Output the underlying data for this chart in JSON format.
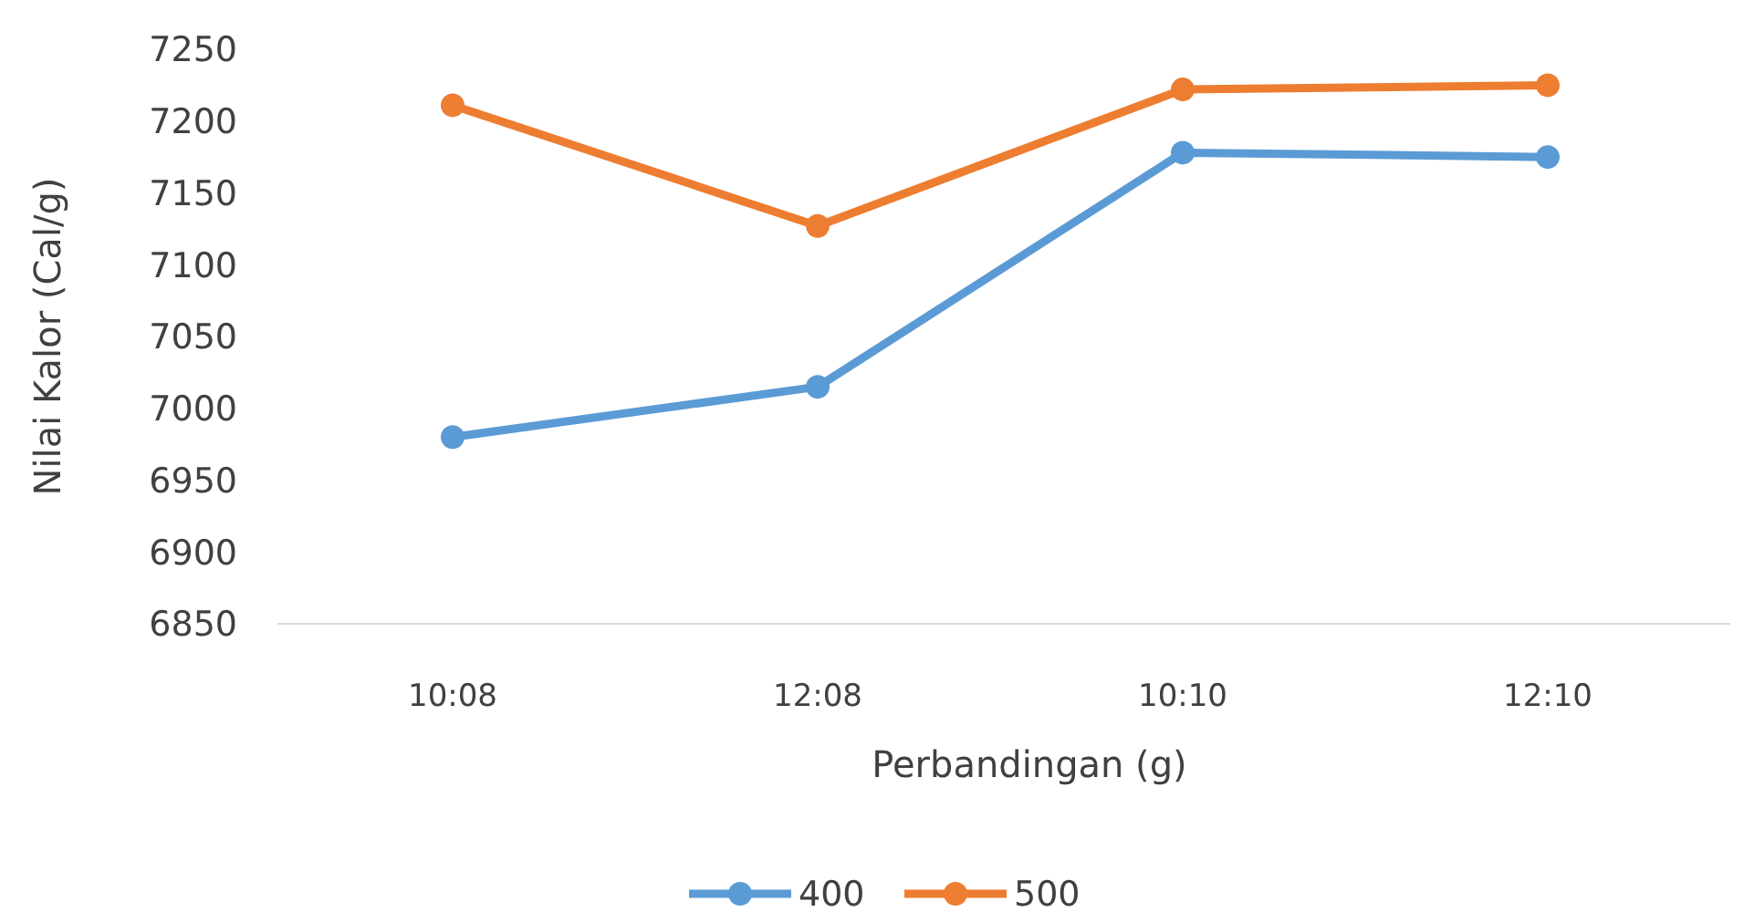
{
  "chart_data": {
    "type": "line",
    "xlabel": "Perbandingan (g)",
    "ylabel": "Nilai Kalor (Cal/g)",
    "categories": [
      "10:08",
      "12:08",
      "10:10",
      "12:10"
    ],
    "series": [
      {
        "name": "400",
        "color": "#5b9bd5",
        "values": [
          6980,
          7015,
          7178,
          7175
        ]
      },
      {
        "name": "500",
        "color": "#ed7d31",
        "values": [
          7211,
          7127,
          7222,
          7225
        ]
      }
    ],
    "ylim": [
      6850,
      7250
    ],
    "yticks": [
      6850,
      6900,
      6950,
      7000,
      7050,
      7100,
      7150,
      7200,
      7250
    ],
    "legend": "bottom",
    "marker": "circle",
    "line_style": "solid"
  }
}
